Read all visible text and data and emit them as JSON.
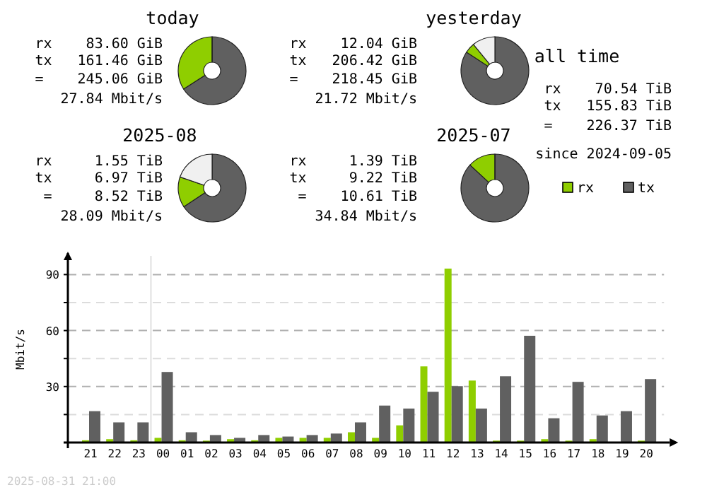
{
  "chart_data": [
    {
      "type": "donut",
      "title": "today",
      "categories": [
        null,
        null,
        null
      ],
      "values": [
        65.9,
        34.1,
        0
      ],
      "colors": [
        "#606060",
        "#8fce00",
        "#f0f0f0"
      ],
      "annotations": [
        "rx    83.60 GiB",
        "tx   161.46 GiB",
        "=    245.06 GiB",
        "27.84 Mbit/s"
      ]
    },
    {
      "type": "donut",
      "title": "yesterday",
      "categories": [
        null,
        null,
        null
      ],
      "values": [
        84.2,
        4.9,
        10.9
      ],
      "colors": [
        "#606060",
        "#8fce00",
        "#f0f0f0"
      ],
      "annotations": [
        "rx    12.04 GiB",
        "tx   206.42 GiB",
        "=    218.45 GiB",
        "21.72 Mbit/s"
      ]
    },
    {
      "type": "donut",
      "title": "2025-08",
      "categories": [
        null,
        null,
        null
      ],
      "values": [
        65.7,
        14.6,
        19.7
      ],
      "colors": [
        "#606060",
        "#8fce00",
        "#f0f0f0"
      ],
      "annotations": [
        "rx     1.55 TiB",
        "tx     6.97 TiB",
        "=     8.52 TiB",
        "28.09 Mbit/s"
      ]
    },
    {
      "type": "donut",
      "title": "2025-07",
      "categories": [
        null,
        null,
        null
      ],
      "values": [
        86.9,
        13.1,
        0
      ],
      "colors": [
        "#606060",
        "#8fce00",
        "#f0f0f0"
      ],
      "annotations": [
        "rx     1.39 TiB",
        "tx     9.22 TiB",
        "=    10.61 TiB",
        "34.84 Mbit/s"
      ]
    },
    {
      "type": "other",
      "title": "all time",
      "annotations": [
        "rx    70.54 TiB",
        "tx   155.83 TiB",
        "=    226.37 TiB",
        "since 2024-09-05"
      ]
    },
    {
      "type": "bar",
      "ylabel": "Mbit/s",
      "categories": [
        "21",
        "22",
        "23",
        "00",
        "01",
        "02",
        "03",
        "04",
        "05",
        "06",
        "07",
        "08",
        "09",
        "10",
        "11",
        "12",
        "13",
        "14",
        "15",
        "16",
        "17",
        "18",
        "19",
        "20"
      ],
      "series": [
        {
          "name": "rx",
          "color": "#8fce00",
          "values": [
            1.2,
            1.8,
            1.2,
            2.5,
            1.2,
            1,
            1.8,
            1.2,
            2.5,
            2.5,
            2.5,
            5.5,
            2.5,
            9.2,
            40.8,
            93.2,
            33.2,
            1,
            1,
            1.8,
            1,
            1.8,
            null,
            1
          ]
        },
        {
          "name": "tx",
          "color": "#606060",
          "values": [
            16.8,
            10.8,
            10.8,
            37.8,
            5.5,
            4,
            2.5,
            4,
            3.2,
            4,
            4.8,
            10.8,
            19.8,
            18.2,
            27.2,
            30.2,
            18.2,
            35.5,
            57.2,
            13,
            32.5,
            14.5,
            16.8,
            34
          ]
        }
      ],
      "ylim": [
        0,
        100
      ],
      "yticks": [
        {
          "value": 0,
          "label": null
        },
        {
          "value": 15,
          "label": null
        },
        30,
        {
          "value": 45,
          "label": null
        },
        60,
        {
          "value": 75,
          "label": null
        },
        90
      ],
      "grid": "y",
      "legend": "top right",
      "ref_lines": [
        {
          "axis": "x",
          "value": "00",
          "color": "#e0e0e0"
        }
      ],
      "annotations": [
        "2025-08-31 21:00"
      ]
    }
  ]
}
